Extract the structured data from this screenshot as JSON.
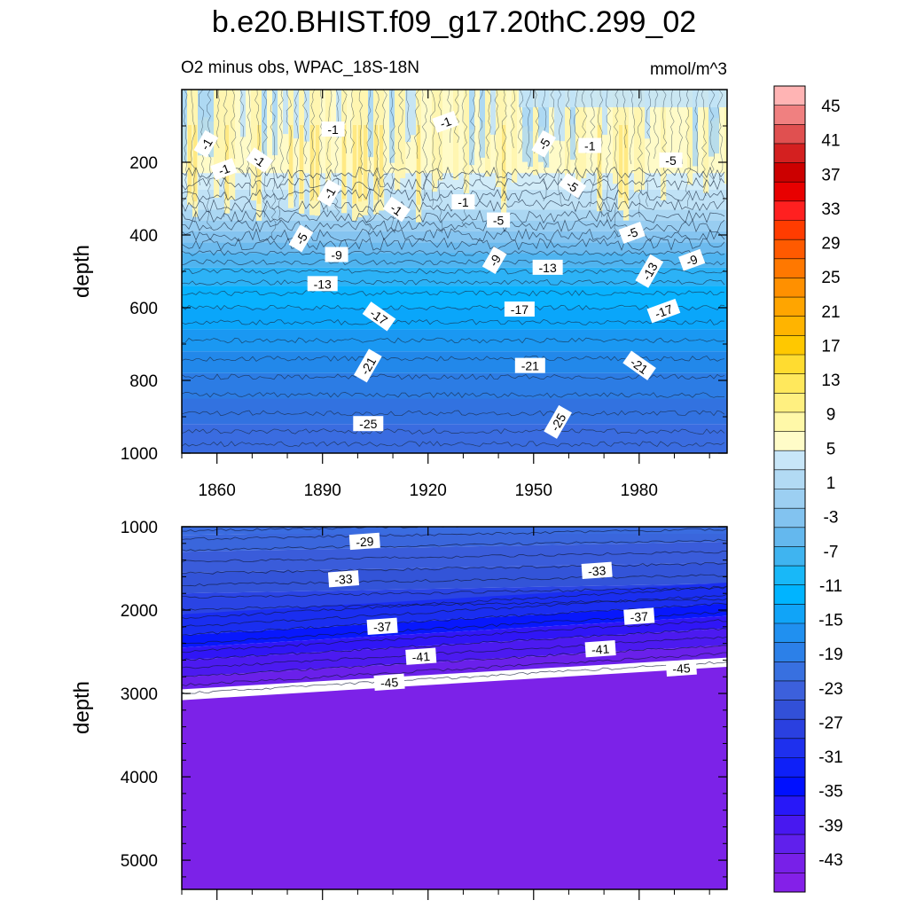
{
  "title": "b.e20.BHIST.f09_g17.20thC.299_02",
  "chart_data": [
    {
      "type": "heatmap",
      "panel": "upper",
      "subtitle": "O2 minus obs, WPAC_18S-18N",
      "units": "mmol/m^3",
      "xlabel": "",
      "ylabel": "depth",
      "xlim": [
        1850,
        2005
      ],
      "ylim": [
        1000,
        0
      ],
      "x_ticks": [
        1860,
        1890,
        1920,
        1950,
        1980
      ],
      "y_ticks": [
        200,
        400,
        600,
        800,
        1000
      ],
      "depth_profile": [
        {
          "depth": 120,
          "value": 1
        },
        {
          "depth": 250,
          "value": -1
        },
        {
          "depth": 340,
          "value": -3
        },
        {
          "depth": 400,
          "value": -5
        },
        {
          "depth": 450,
          "value": -9
        },
        {
          "depth": 530,
          "value": -13
        },
        {
          "depth": 620,
          "value": -17
        },
        {
          "depth": 760,
          "value": -21
        },
        {
          "depth": 900,
          "value": -25
        },
        {
          "depth": 1000,
          "value": -27
        }
      ],
      "contour_labels": [
        {
          "text": "-1",
          "x": 1857,
          "depth": 150
        },
        {
          "text": "-1",
          "x": 1872,
          "depth": 195
        },
        {
          "text": "-1",
          "x": 1862,
          "depth": 220
        },
        {
          "text": "-1",
          "x": 1893,
          "depth": 110
        },
        {
          "text": "-1",
          "x": 1892,
          "depth": 285
        },
        {
          "text": "-1",
          "x": 1925,
          "depth": 90
        },
        {
          "text": "-1",
          "x": 1911,
          "depth": 330
        },
        {
          "text": "-1",
          "x": 1930,
          "depth": 310
        },
        {
          "text": "-5",
          "x": 1953,
          "depth": 150
        },
        {
          "text": "-1",
          "x": 1966,
          "depth": 155
        },
        {
          "text": "-5",
          "x": 1989,
          "depth": 195
        },
        {
          "text": "-5",
          "x": 1961,
          "depth": 265
        },
        {
          "text": "-5",
          "x": 1884,
          "depth": 410
        },
        {
          "text": "-5",
          "x": 1940,
          "depth": 360
        },
        {
          "text": "-5",
          "x": 1978,
          "depth": 395
        },
        {
          "text": "-9",
          "x": 1894,
          "depth": 455
        },
        {
          "text": "-9",
          "x": 1939,
          "depth": 470
        },
        {
          "text": "-9",
          "x": 1995,
          "depth": 470
        },
        {
          "text": "-13",
          "x": 1890,
          "depth": 535
        },
        {
          "text": "-13",
          "x": 1954,
          "depth": 490
        },
        {
          "text": "-13",
          "x": 1983,
          "depth": 500
        },
        {
          "text": "-17",
          "x": 1906,
          "depth": 625
        },
        {
          "text": "-17",
          "x": 1946,
          "depth": 605
        },
        {
          "text": "-17",
          "x": 1987,
          "depth": 610
        },
        {
          "text": "-21",
          "x": 1903,
          "depth": 760
        },
        {
          "text": "-21",
          "x": 1949,
          "depth": 760
        },
        {
          "text": "-21",
          "x": 1980,
          "depth": 760
        },
        {
          "text": "-25",
          "x": 1903,
          "depth": 920
        },
        {
          "text": "-25",
          "x": 1957,
          "depth": 915
        }
      ]
    },
    {
      "type": "heatmap",
      "panel": "lower",
      "xlabel": "",
      "ylabel": "depth",
      "xlim": [
        1850,
        2005
      ],
      "ylim": [
        5350,
        1000
      ],
      "y_ticks": [
        1000,
        2000,
        3000,
        4000,
        5000
      ],
      "contour_labels": [
        {
          "text": "-29",
          "x": 1902,
          "depth": 1180
        },
        {
          "text": "-33",
          "x": 1896,
          "depth": 1630
        },
        {
          "text": "-33",
          "x": 1968,
          "depth": 1530
        },
        {
          "text": "-37",
          "x": 1907,
          "depth": 2200
        },
        {
          "text": "-37",
          "x": 1980,
          "depth": 2080
        },
        {
          "text": "-41",
          "x": 1918,
          "depth": 2560
        },
        {
          "text": "-41",
          "x": 1969,
          "depth": 2470
        },
        {
          "text": "-45",
          "x": 1909,
          "depth": 2870
        },
        {
          "text": "-45",
          "x": 1992,
          "depth": 2700
        }
      ]
    }
  ],
  "colorbar": {
    "labels": [
      "45",
      "41",
      "37",
      "33",
      "29",
      "25",
      "21",
      "17",
      "13",
      "9",
      "5",
      "1",
      "-3",
      "-7",
      "-11",
      "-15",
      "-19",
      "-23",
      "-27",
      "-31",
      "-35",
      "-39",
      "-43"
    ],
    "colors": [
      "#ffb4b4",
      "#f08080",
      "#e05050",
      "#d42020",
      "#cc0000",
      "#e80000",
      "#ff2020",
      "#ff3c00",
      "#ff5a00",
      "#ff7800",
      "#ff9000",
      "#ffa500",
      "#ffb400",
      "#ffc800",
      "#ffdc30",
      "#ffe85c",
      "#fff080",
      "#fff8a8",
      "#fffcc8",
      "#c8e6f8",
      "#b2daf4",
      "#9ccff2",
      "#82c3f0",
      "#64b8ee",
      "#3fb4f0",
      "#18b8f8",
      "#00b4ff",
      "#10a4f8",
      "#2090f0",
      "#2c80e8",
      "#3870e0",
      "#3c60dc",
      "#3250d8",
      "#2a40e0",
      "#1e30ee",
      "#0e20f8",
      "#0010ff",
      "#2818f8",
      "#4818f0",
      "#6020ec",
      "#7820e8",
      "#8420e8"
    ]
  }
}
